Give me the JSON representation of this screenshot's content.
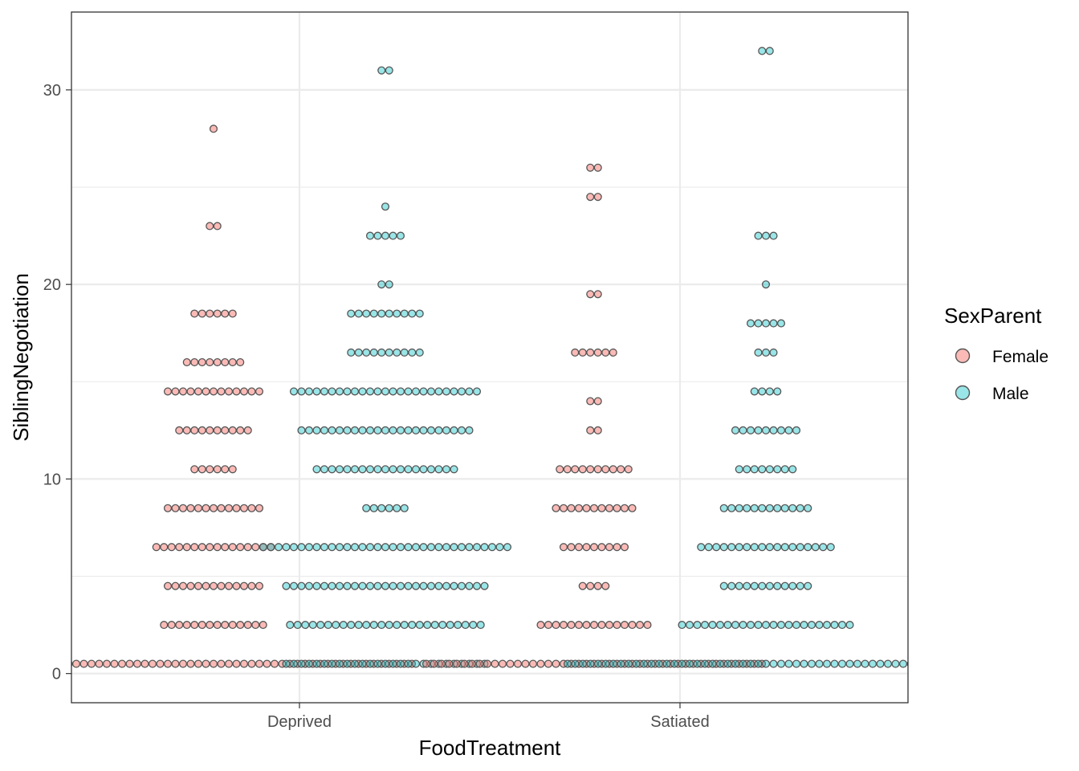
{
  "chart_data": {
    "type": "dotplot",
    "xlabel": "FoodTreatment",
    "ylabel": "SiblingNegotiation",
    "categories": [
      "Deprived",
      "Satiated"
    ],
    "ylim": [
      -1.5,
      34
    ],
    "yticks": [
      0,
      10,
      20,
      30
    ],
    "grid": true,
    "legend": {
      "title": "SexParent",
      "placement": "right",
      "entries": [
        {
          "name": "Female",
          "color": "#F8766D"
        },
        {
          "name": "Male",
          "color": "#00BFC4"
        }
      ]
    },
    "groups": [
      {
        "category": "Deprived",
        "series": "Female",
        "bins": [
          {
            "y": 0.5,
            "count": 53
          },
          {
            "y": 2.5,
            "count": 14
          },
          {
            "y": 4.5,
            "count": 13
          },
          {
            "y": 6.5,
            "count": 16
          },
          {
            "y": 8.5,
            "count": 13
          },
          {
            "y": 10.5,
            "count": 6
          },
          {
            "y": 12.5,
            "count": 10
          },
          {
            "y": 14.5,
            "count": 13
          },
          {
            "y": 16,
            "count": 8
          },
          {
            "y": 18.5,
            "count": 6
          },
          {
            "y": 23,
            "count": 2
          },
          {
            "y": 28,
            "count": 1
          }
        ]
      },
      {
        "category": "Deprived",
        "series": "Male",
        "bins": [
          {
            "y": 0.5,
            "count": 27
          },
          {
            "y": 2.5,
            "count": 26
          },
          {
            "y": 4.5,
            "count": 27
          },
          {
            "y": 6.5,
            "count": 33
          },
          {
            "y": 8.5,
            "count": 6
          },
          {
            "y": 10.5,
            "count": 19
          },
          {
            "y": 12.5,
            "count": 23
          },
          {
            "y": 14.5,
            "count": 25
          },
          {
            "y": 16.5,
            "count": 10
          },
          {
            "y": 18.5,
            "count": 10
          },
          {
            "y": 20,
            "count": 2
          },
          {
            "y": 22.5,
            "count": 5
          },
          {
            "y": 24,
            "count": 1
          },
          {
            "y": 31,
            "count": 2
          }
        ]
      },
      {
        "category": "Satiated",
        "series": "Female",
        "bins": [
          {
            "y": 0.5,
            "count": 45
          },
          {
            "y": 2.5,
            "count": 15
          },
          {
            "y": 4.5,
            "count": 4
          },
          {
            "y": 6.5,
            "count": 9
          },
          {
            "y": 8.5,
            "count": 11
          },
          {
            "y": 10.5,
            "count": 10
          },
          {
            "y": 12.5,
            "count": 2
          },
          {
            "y": 14,
            "count": 2
          },
          {
            "y": 16.5,
            "count": 6
          },
          {
            "y": 19.5,
            "count": 2
          },
          {
            "y": 24.5,
            "count": 2
          },
          {
            "y": 26,
            "count": 2
          }
        ]
      },
      {
        "category": "Satiated",
        "series": "Male",
        "bins": [
          {
            "y": 0.5,
            "count": 53
          },
          {
            "y": 2.5,
            "count": 23
          },
          {
            "y": 4.5,
            "count": 12
          },
          {
            "y": 6.5,
            "count": 18
          },
          {
            "y": 8.5,
            "count": 12
          },
          {
            "y": 10.5,
            "count": 8
          },
          {
            "y": 12.5,
            "count": 9
          },
          {
            "y": 14.5,
            "count": 4
          },
          {
            "y": 16.5,
            "count": 3
          },
          {
            "y": 18,
            "count": 5
          },
          {
            "y": 20,
            "count": 1
          },
          {
            "y": 22.5,
            "count": 3
          },
          {
            "y": 32,
            "count": 2
          }
        ]
      }
    ]
  }
}
